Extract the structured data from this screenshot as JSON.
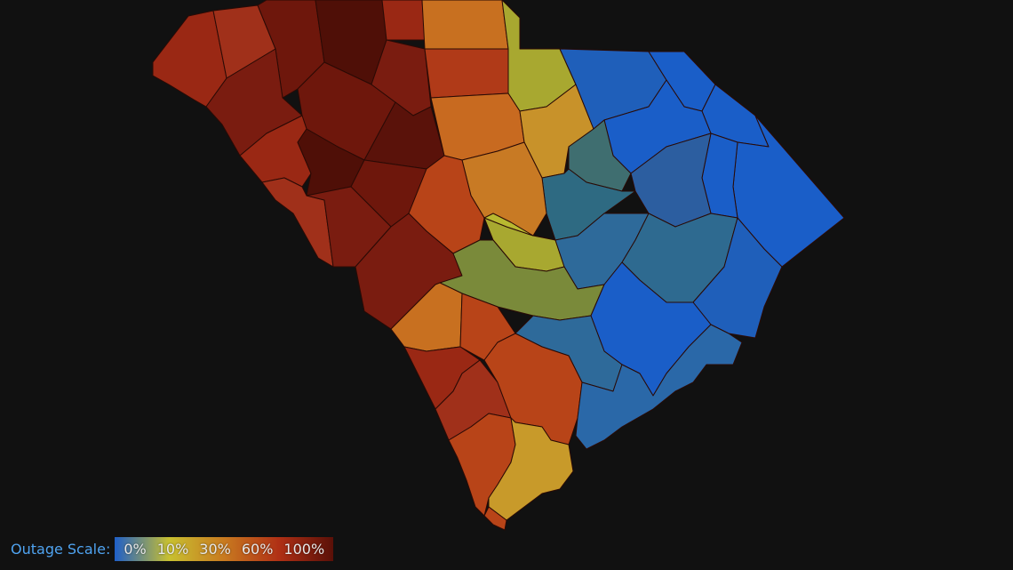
{
  "legend": {
    "title": "Outage Scale:",
    "stops": [
      "0%",
      "10%",
      "30%",
      "60%",
      "100%"
    ],
    "gradient_colors": [
      "#1f5fc8",
      "#c8c030",
      "#c87a20",
      "#b03015",
      "#5a1008"
    ]
  },
  "colors": {
    "background": "#111111",
    "outage_0": "#1a5ec8",
    "outage_5": "#2e6a9a",
    "outage_8": "#3f6e70",
    "outage_10": "#a8a830",
    "outage_15": "#7a8a3a",
    "outage_30": "#c87020",
    "outage_45": "#b84418",
    "outage_60": "#9a2814",
    "outage_80": "#6e170c",
    "outage_100": "#4f0f07"
  }
}
